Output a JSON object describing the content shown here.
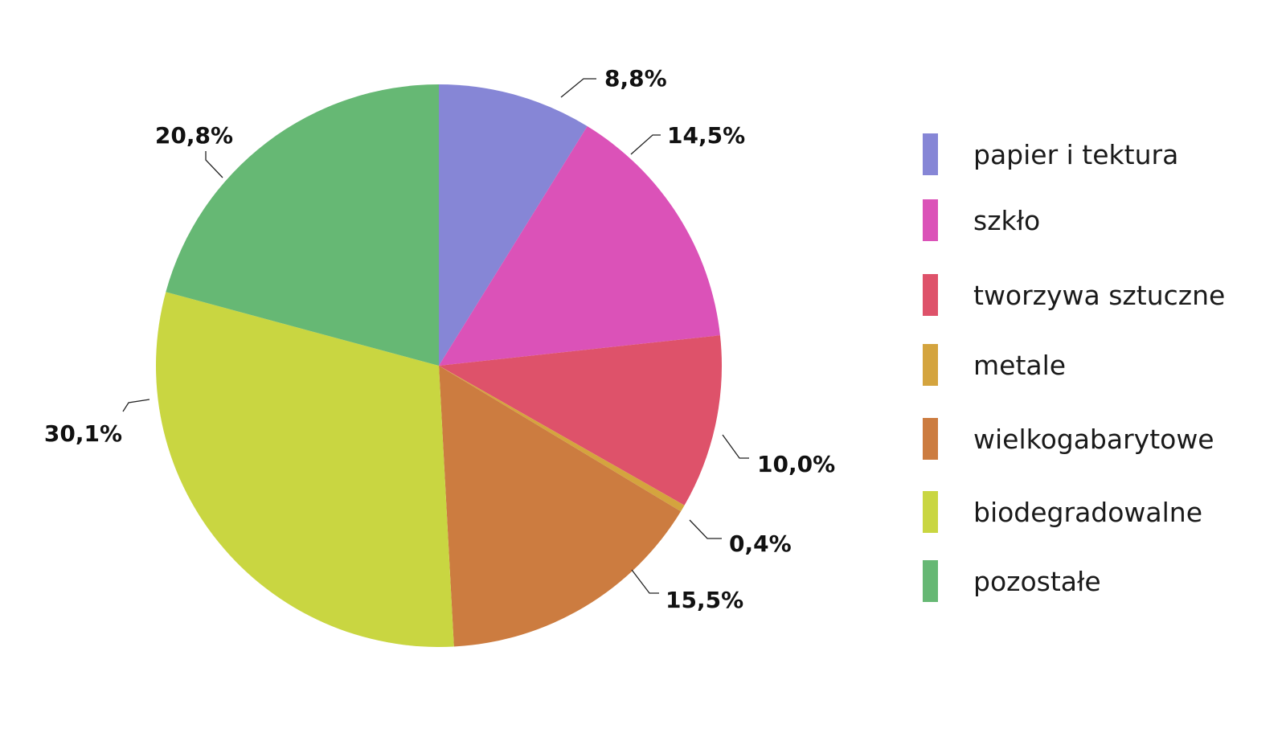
{
  "chart_data": {
    "type": "pie",
    "title": "",
    "start_angle_deg": 0,
    "direction": "clockwise",
    "slices": [
      {
        "name": "papier i tektura",
        "value": 8.8,
        "label": "8,8%",
        "color": "#8686d6"
      },
      {
        "name": "szkło",
        "value": 14.5,
        "label": "14,5%",
        "color": "#db52b8"
      },
      {
        "name": "tworzywa sztuczne",
        "value": 10.0,
        "label": "10,0%",
        "color": "#de526a"
      },
      {
        "name": "metale",
        "value": 0.4,
        "label": "0,4%",
        "color": "#d4a43e"
      },
      {
        "name": "wielkogabarytowe",
        "value": 15.5,
        "label": "15,5%",
        "color": "#cc7c40"
      },
      {
        "name": "biodegradowalne",
        "value": 30.1,
        "label": "30,1%",
        "color": "#c9d641"
      },
      {
        "name": "pozostałe",
        "value": 20.8,
        "label": "20,8%",
        "color": "#66b874"
      }
    ],
    "legend_position": "right"
  }
}
